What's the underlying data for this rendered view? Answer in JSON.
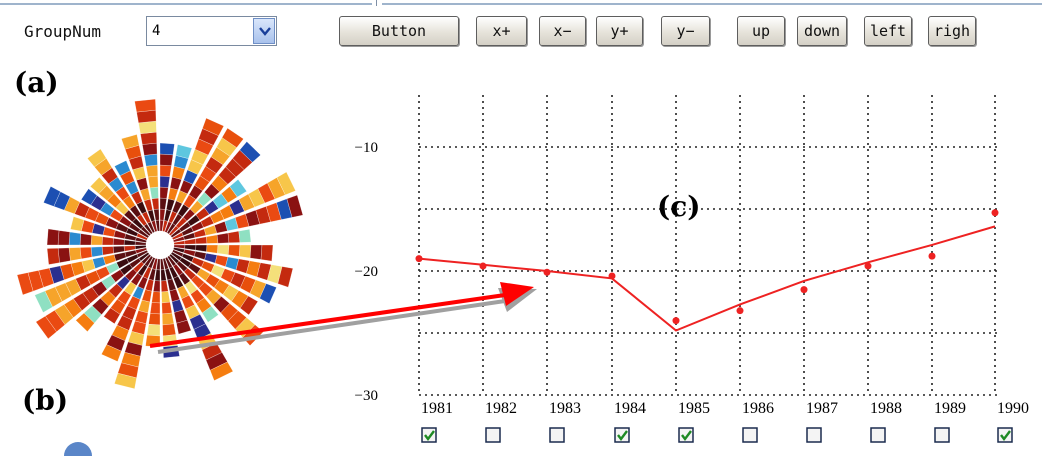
{
  "toolbar": {
    "group_label": "GroupNum",
    "group_value": "4",
    "buttons": [
      "Button",
      "x+",
      "x−",
      "y+",
      "y−",
      "up",
      "down",
      "left",
      "righ"
    ]
  },
  "panel_labels": {
    "a": "(a)",
    "b": "(b)",
    "c": "(c)"
  },
  "chart_data": {
    "type": "line",
    "x": [
      "1981",
      "1982",
      "1983",
      "1984",
      "1985",
      "1986",
      "1987",
      "1988",
      "1989",
      "1990"
    ],
    "ylim": [
      -30,
      -5
    ],
    "yticks": [
      "−10",
      "−20",
      "−30"
    ],
    "series": [
      {
        "values": [
          -19.0,
          -19.6,
          -20.1,
          -20.4,
          -24.0,
          -23.2,
          -21.5,
          -19.6,
          -18.8,
          -15.3
        ]
      },
      {
        "values": [
          -19.0,
          -19.5,
          -20.0,
          -20.6,
          -24.8,
          -22.7,
          -20.8,
          -19.3,
          -17.9,
          -16.4
        ]
      }
    ],
    "checked": [
      true,
      false,
      false,
      true,
      true,
      false,
      false,
      false,
      false,
      true
    ],
    "grid": true,
    "colors": {
      "line": "#ee2222",
      "points": "#ee2222"
    }
  },
  "radial_colors": [
    "#3a0b0f",
    "#5a0f12",
    "#8a1212",
    "#c42a0f",
    "#e84f0c",
    "#f57d10",
    "#f6a42a",
    "#f7c64a",
    "#ea4a12",
    "#2b2f8f",
    "#1c4fb2",
    "#2a8ad0",
    "#5ec7df",
    "#8fe0c2",
    "#f4e07a"
  ],
  "arrow": {
    "colors": [
      "#ff0000",
      "#a0a0a0"
    ]
  }
}
